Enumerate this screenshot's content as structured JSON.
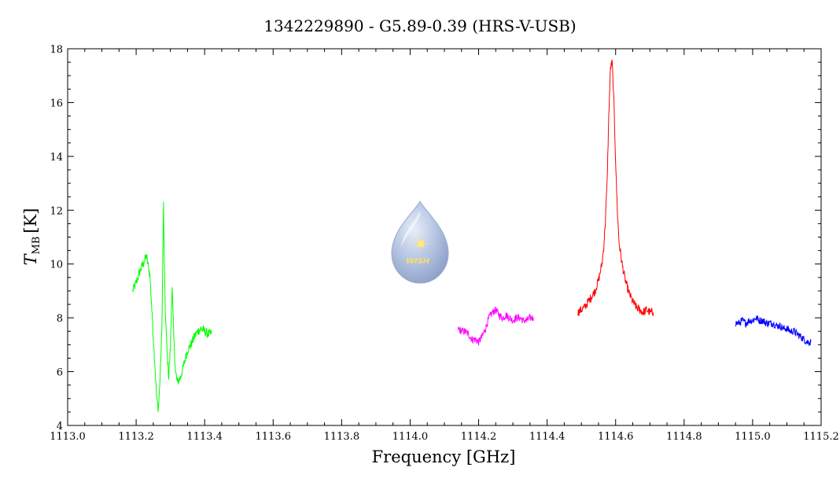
{
  "chart_data": {
    "type": "line",
    "title": "1342229890 - G5.89-0.39 (HRS-V-USB)",
    "xlabel": "Frequency [GHz]",
    "ylabel": {
      "main": "T",
      "sub": "MB",
      "unit": "[K]"
    },
    "xlim": [
      1113.0,
      1115.2
    ],
    "ylim": [
      4,
      18
    ],
    "x_ticks": [
      "1113.0",
      "1113.2",
      "1113.4",
      "1113.6",
      "1113.8",
      "1114.0",
      "1114.2",
      "1114.4",
      "1114.6",
      "1114.8",
      "1115.0",
      "1115.2"
    ],
    "y_ticks": [
      "4",
      "6",
      "8",
      "10",
      "12",
      "14",
      "16",
      "18"
    ],
    "grid": false,
    "logo": {
      "text": "WISH",
      "position": [
        1114.03,
        10.5
      ]
    },
    "series": [
      {
        "color": "#00ff00",
        "x": [
          1113.19,
          1113.2,
          1113.21,
          1113.22,
          1113.23,
          1113.24,
          1113.245,
          1113.25,
          1113.255,
          1113.26,
          1113.265,
          1113.27,
          1113.275,
          1113.278,
          1113.28,
          1113.282,
          1113.285,
          1113.29,
          1113.295,
          1113.3,
          1113.305,
          1113.31,
          1113.315,
          1113.32,
          1113.33,
          1113.34,
          1113.35,
          1113.36,
          1113.37,
          1113.38,
          1113.39,
          1113.4,
          1113.41,
          1113.42
        ],
        "y": [
          9.0,
          9.3,
          9.7,
          10.0,
          10.3,
          9.6,
          8.5,
          7.3,
          6.2,
          5.0,
          4.6,
          5.8,
          7.5,
          10.5,
          12.2,
          10.2,
          8.3,
          6.8,
          5.8,
          6.9,
          9.2,
          7.2,
          6.0,
          5.6,
          5.8,
          6.3,
          6.8,
          7.0,
          7.3,
          7.5,
          7.6,
          7.5,
          7.4,
          7.4
        ]
      },
      {
        "color": "#ff00ff",
        "x": [
          1114.14,
          1114.15,
          1114.16,
          1114.17,
          1114.18,
          1114.19,
          1114.2,
          1114.21,
          1114.22,
          1114.23,
          1114.24,
          1114.25,
          1114.26,
          1114.27,
          1114.28,
          1114.29,
          1114.3,
          1114.31,
          1114.32,
          1114.33,
          1114.34,
          1114.35,
          1114.36
        ],
        "y": [
          7.6,
          7.5,
          7.5,
          7.4,
          7.2,
          7.2,
          7.1,
          7.3,
          7.6,
          8.0,
          8.2,
          8.3,
          8.1,
          8.0,
          8.1,
          8.0,
          7.9,
          8.0,
          8.0,
          7.9,
          7.9,
          8.0,
          8.0
        ]
      },
      {
        "color": "#ff0000",
        "x": [
          1114.49,
          1114.5,
          1114.51,
          1114.52,
          1114.53,
          1114.54,
          1114.55,
          1114.56,
          1114.565,
          1114.57,
          1114.575,
          1114.58,
          1114.585,
          1114.59,
          1114.595,
          1114.6,
          1114.605,
          1114.61,
          1114.62,
          1114.63,
          1114.64,
          1114.65,
          1114.66,
          1114.67,
          1114.68,
          1114.69,
          1114.7,
          1114.71
        ],
        "y": [
          8.2,
          8.3,
          8.4,
          8.6,
          8.8,
          9.0,
          9.4,
          10.0,
          10.6,
          11.6,
          13.0,
          15.5,
          17.3,
          17.5,
          16.0,
          13.8,
          12.0,
          10.8,
          9.9,
          9.3,
          8.9,
          8.6,
          8.4,
          8.3,
          8.2,
          8.3,
          8.2,
          8.2
        ]
      },
      {
        "color": "#0000ff",
        "x": [
          1114.95,
          1114.96,
          1114.97,
          1114.98,
          1114.99,
          1115.0,
          1115.01,
          1115.02,
          1115.03,
          1115.04,
          1115.05,
          1115.06,
          1115.07,
          1115.08,
          1115.09,
          1115.1,
          1115.11,
          1115.12,
          1115.13,
          1115.14,
          1115.15,
          1115.16,
          1115.17
        ],
        "y": [
          7.8,
          7.8,
          7.9,
          7.8,
          7.9,
          7.9,
          8.0,
          7.9,
          7.9,
          7.8,
          7.8,
          7.8,
          7.7,
          7.7,
          7.6,
          7.6,
          7.5,
          7.5,
          7.4,
          7.3,
          7.2,
          7.1,
          7.1
        ]
      }
    ]
  }
}
